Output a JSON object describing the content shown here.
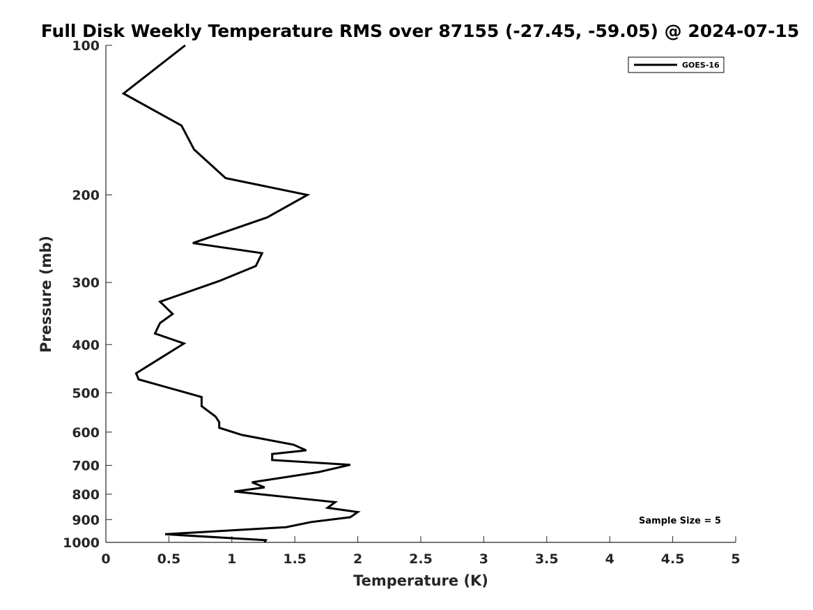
{
  "chart_data": {
    "type": "line",
    "title": "Full Disk Weekly Temperature RMS over 87155 (-27.45, -59.05) @ 2024-07-15",
    "xlabel": "Temperature (K)",
    "ylabel": "Pressure (mb)",
    "xlim": [
      0,
      5
    ],
    "ylim": [
      100,
      1000
    ],
    "yscale": "log",
    "y_reversed": true,
    "grid": false,
    "x_ticks": [
      0,
      0.5,
      1,
      1.5,
      2,
      2.5,
      3,
      3.5,
      4,
      4.5,
      5
    ],
    "x_tick_labels": [
      "0",
      "0.5",
      "1",
      "1.5",
      "2",
      "2.5",
      "3",
      "3.5",
      "4",
      "4.5",
      "5"
    ],
    "y_ticks": [
      100,
      200,
      300,
      400,
      500,
      600,
      700,
      800,
      900,
      1000
    ],
    "y_tick_labels": [
      "100",
      "200",
      "300",
      "400",
      "500",
      "600",
      "700",
      "800",
      "900",
      "1000"
    ],
    "legend": {
      "position": "top-right",
      "entries": [
        "GOES-16"
      ]
    },
    "annotations": [
      {
        "text": "Sample Size = 5",
        "position": "bottom-right"
      }
    ],
    "series": [
      {
        "name": "GOES-16",
        "color": "#000000",
        "x": [
          0.63,
          0.14,
          0.6,
          0.7,
          0.95,
          1.6,
          1.28,
          0.69,
          1.24,
          1.19,
          0.9,
          0.43,
          0.53,
          0.43,
          0.39,
          0.62,
          0.42,
          0.24,
          0.26,
          0.76,
          0.76,
          0.87,
          0.9,
          0.9,
          1.08,
          1.49,
          1.59,
          1.32,
          1.32,
          1.94,
          1.69,
          1.16,
          1.26,
          1.02,
          1.82,
          1.76,
          2.0,
          1.94,
          1.63,
          1.43,
          0.47,
          1.27,
          1.26
        ],
        "y": [
          100,
          125,
          145,
          162,
          185,
          200,
          222,
          250,
          262,
          278,
          298,
          328,
          347,
          362,
          380,
          398,
          428,
          457,
          470,
          510,
          532,
          558,
          573,
          588,
          608,
          636,
          653,
          664,
          683,
          698,
          722,
          757,
          775,
          790,
          830,
          852,
          869,
          890,
          910,
          932,
          963,
          990,
          1000
        ]
      }
    ]
  }
}
